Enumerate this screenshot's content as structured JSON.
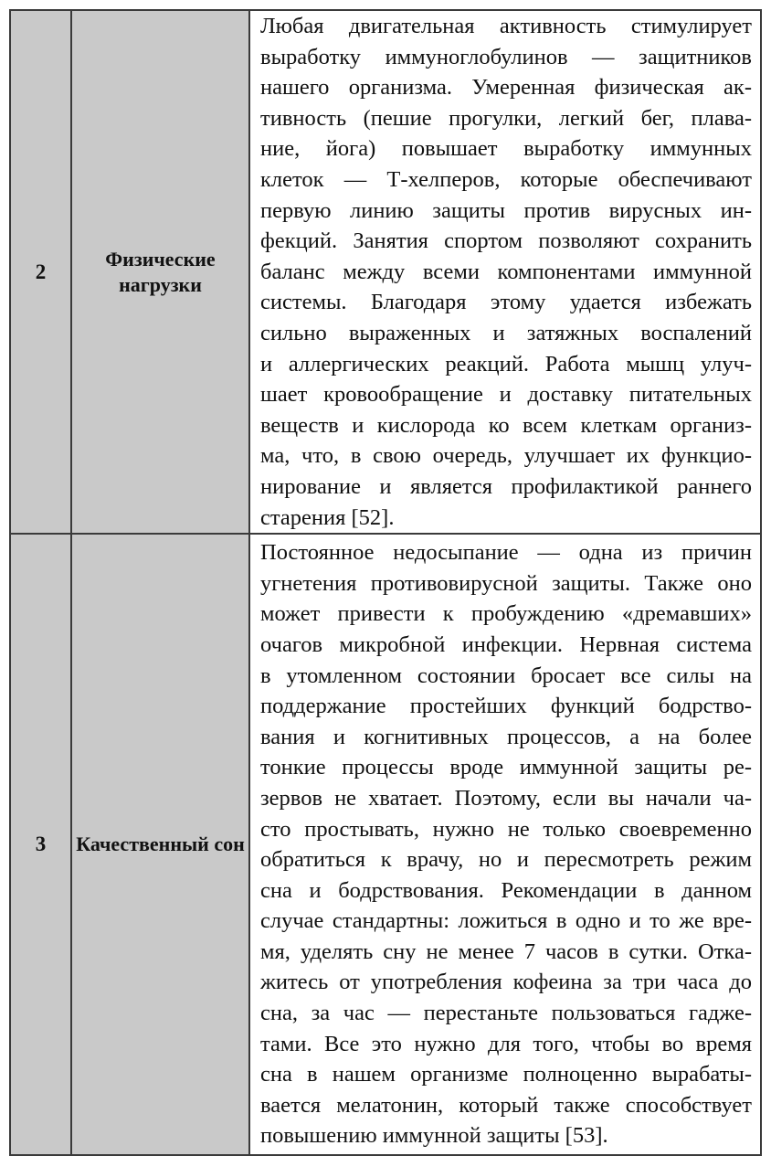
{
  "rows": [
    {
      "number": "2",
      "factor": "Физические нагрузки",
      "lines": [
        "Любая двигательная активность стимулирует",
        "выработку иммуноглобулинов — защитников",
        "нашего организма. Умеренная физическая ак-",
        "тивность (пешие прогулки, легкий бег, плава-",
        "ние, йога) повышает выработку иммунных",
        "клеток — Т-хелперов, которые обеспечивают",
        "первую линию защиты против вирусных ин-",
        "фекций. Занятия спортом позволяют сохранить",
        "баланс между всеми компонентами иммунной",
        "системы. Благодаря этому удается избежать",
        "сильно выраженных и затяжных воспалений",
        "и аллергических реакций. Работа мышц улуч-",
        "шает кровообращение и доставку питательных",
        "веществ и кислорода ко всем клеткам организ-",
        "ма, что, в свою очередь, улучшает их функцио-",
        "нирование и является профилактикой раннего",
        "старения [52]."
      ]
    },
    {
      "number": "3",
      "factor": "Качественный сон",
      "lines": [
        "Постоянное недосыпание — одна из причин",
        "угнетения противовирусной защиты. Также оно",
        "может привести к пробуждению «дремавших»",
        "очагов микробной инфекции. Нервная система",
        "в утомленном состоянии бросает все силы на",
        "поддержание простейших функций бодрство-",
        "вания и когнитивных процессов, а на более",
        "тонкие процессы вроде иммунной защиты ре-",
        "зервов не хватает. Поэтому, если вы начали ча-",
        "сто простывать, нужно не только своевременно",
        "обратиться к врачу, но и пересмотреть режим",
        "сна и бодрствования. Рекомендации в данном",
        "случае стандартны: ложиться в одно и то же вре-",
        "мя, уделять сну не менее 7 часов в сутки. Отка-",
        "житесь от употребления кофеина за три часа до",
        "сна, за час — перестаньте пользоваться гадже-",
        "тами. Все это нужно для того, чтобы во время",
        "сна в нашем организме полноценно вырабаты-",
        "вается мелатонин, который также способствует",
        "повышению иммунной защиты [53]."
      ]
    }
  ],
  "colors": {
    "header_cell_bg": "#c9c9c9",
    "border": "#3a3a3a"
  }
}
